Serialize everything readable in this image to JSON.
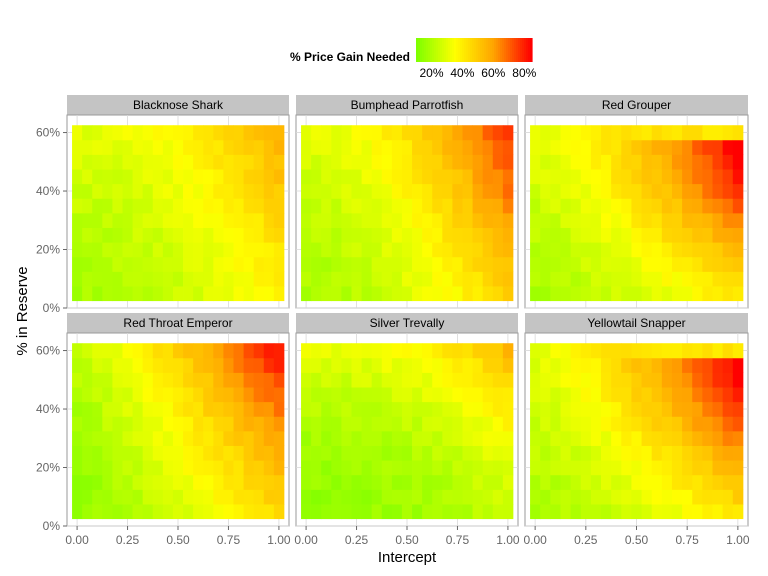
{
  "chart_data": {
    "type": "heatmap",
    "xlabel": "Intercept",
    "ylabel": "% in Reserve",
    "x_ticks": [
      "0.00",
      "0.25",
      "0.50",
      "0.75",
      "1.00"
    ],
    "y_ticks": [
      "0%",
      "20%",
      "40%",
      "60%"
    ],
    "xlim": [
      -0.05,
      1.05
    ],
    "ylim": [
      0,
      0.66
    ],
    "grid_x": [
      0,
      0.05,
      0.1,
      0.15,
      0.2,
      0.25,
      0.3,
      0.35,
      0.4,
      0.45,
      0.5,
      0.55,
      0.6,
      0.65,
      0.7,
      0.75,
      0.8,
      0.85,
      0.9,
      0.95,
      1.0
    ],
    "grid_y": [
      0.05,
      0.1,
      0.15,
      0.2,
      0.25,
      0.3,
      0.35,
      0.4,
      0.45,
      0.5,
      0.55,
      0.6
    ],
    "legend": {
      "title": "% Price Gain Needed",
      "labels": [
        "20%",
        "40%",
        "60%",
        "80%"
      ],
      "label_values": [
        20,
        40,
        60,
        80
      ],
      "range": [
        10,
        85
      ],
      "colors": [
        "#7fff00",
        "#ffff00",
        "#ffa500",
        "#ff0000"
      ],
      "placement": "top"
    },
    "panels": [
      {
        "name": "Blacknose Shark",
        "intensity": 0.65,
        "shape": 0
      },
      {
        "name": "Bumphead Parrotfish",
        "intensity": 1.0,
        "shape": 0
      },
      {
        "name": "Red Grouper",
        "intensity": 0.95,
        "shape": 1
      },
      {
        "name": "Red Throat Emperor",
        "intensity": 0.85,
        "shape": 2
      },
      {
        "name": "Silver Trevally",
        "intensity": 0.45,
        "shape": 3
      },
      {
        "name": "Yellowtail Snapper",
        "intensity": 0.95,
        "shape": 1
      }
    ],
    "grid": true
  }
}
